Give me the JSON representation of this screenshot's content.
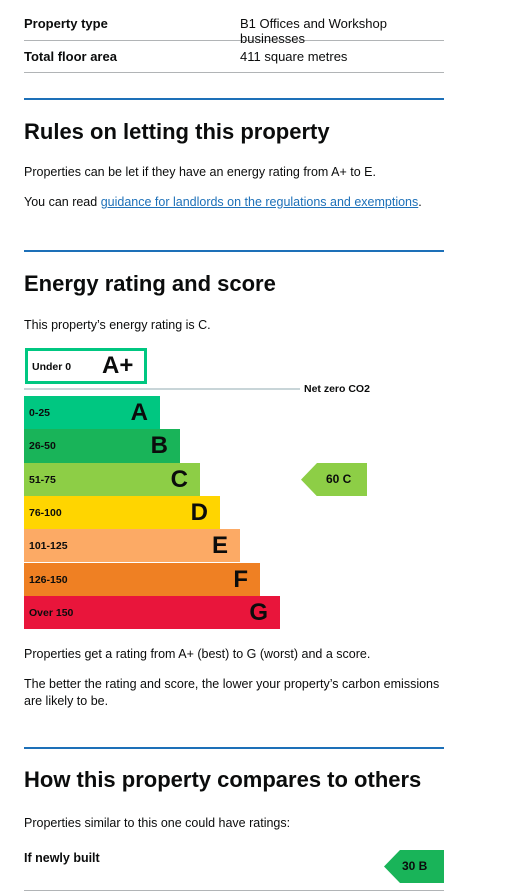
{
  "summary": {
    "rows": [
      {
        "key": "Property type",
        "value": "B1 Offices and Workshop businesses"
      },
      {
        "key": "Total floor area",
        "value": "411 square metres"
      }
    ]
  },
  "letting": {
    "heading": "Rules on letting this property",
    "para1": "Properties can be let if they have an energy rating from A+ to E.",
    "para2_prefix": "You can read ",
    "para2_link": "guidance for landlords on the regulations and exemptions",
    "para2_suffix": "."
  },
  "energy": {
    "heading": "Energy rating and score",
    "intro": "This property’s energy rating is C.",
    "note1": "Properties get a rating from A+ (best) to G (worst) and a score.",
    "note2": "The better the rating and score, the lower your property’s carbon emissions are likely to be."
  },
  "chart_data": {
    "type": "bar",
    "aplus": {
      "range": "Under 0",
      "letter": "A+",
      "color": "#00c781"
    },
    "net_zero_label": "Net zero CO2",
    "bands": [
      {
        "range": "0-25",
        "letter": "A",
        "color": "#00c781"
      },
      {
        "range": "26-50",
        "letter": "B",
        "color": "#19b459"
      },
      {
        "range": "51-75",
        "letter": "C",
        "color": "#8dce46"
      },
      {
        "range": "76-100",
        "letter": "D",
        "color": "#ffd500"
      },
      {
        "range": "101-125",
        "letter": "E",
        "color": "#fcaa65"
      },
      {
        "range": "126-150",
        "letter": "F",
        "color": "#ef8023"
      },
      {
        "range": "Over 150",
        "letter": "G",
        "color": "#e9153b"
      }
    ],
    "current": {
      "score": 60,
      "band": "C",
      "label": "60 C",
      "color": "#8dce46"
    }
  },
  "compare": {
    "heading": "How this property compares to others",
    "intro": "Properties similar to this one could have ratings:",
    "new_build_label": "If newly built",
    "new_build_rating": {
      "score": 30,
      "band": "B",
      "label": "30 B",
      "color": "#19b459"
    }
  }
}
